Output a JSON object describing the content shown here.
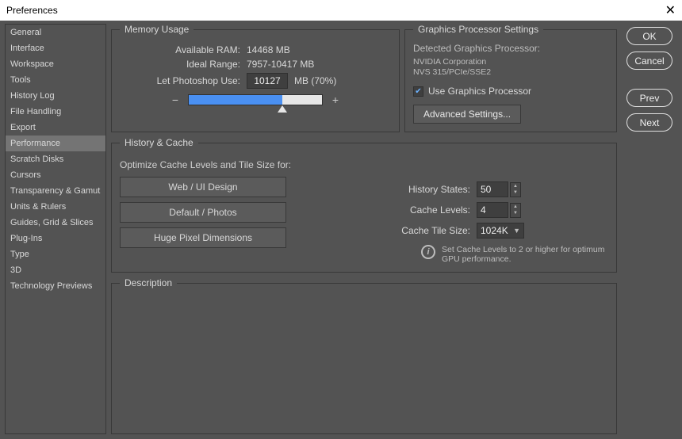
{
  "window": {
    "title": "Preferences"
  },
  "sidebar": {
    "items": [
      {
        "label": "General"
      },
      {
        "label": "Interface"
      },
      {
        "label": "Workspace"
      },
      {
        "label": "Tools"
      },
      {
        "label": "History Log"
      },
      {
        "label": "File Handling"
      },
      {
        "label": "Export"
      },
      {
        "label": "Performance"
      },
      {
        "label": "Scratch Disks"
      },
      {
        "label": "Cursors"
      },
      {
        "label": "Transparency & Gamut"
      },
      {
        "label": "Units & Rulers"
      },
      {
        "label": "Guides, Grid & Slices"
      },
      {
        "label": "Plug-Ins"
      },
      {
        "label": "Type"
      },
      {
        "label": "3D"
      },
      {
        "label": "Technology Previews"
      }
    ],
    "active_index": 7
  },
  "memory": {
    "legend": "Memory Usage",
    "available_label": "Available RAM:",
    "available_value": "14468 MB",
    "ideal_label": "Ideal Range:",
    "ideal_value": "7957-10417 MB",
    "use_label": "Let Photoshop Use:",
    "use_value": "10127",
    "use_suffix": "MB (70%)",
    "slider": {
      "fill_percent": 70,
      "track_bg": "#e6e6e6",
      "fill_color": "#4a90f2"
    }
  },
  "gpu": {
    "legend": "Graphics Processor Settings",
    "detected_label": "Detected Graphics Processor:",
    "vendor": "NVIDIA Corporation",
    "device": "NVS 315/PCIe/SSE2",
    "checkbox_label": "Use Graphics Processor",
    "checked": true,
    "advanced_button": "Advanced Settings..."
  },
  "history": {
    "legend": "History & Cache",
    "optimize_caption": "Optimize Cache Levels and Tile Size for:",
    "buttons": [
      "Web / UI Design",
      "Default / Photos",
      "Huge Pixel Dimensions"
    ],
    "states_label": "History States:",
    "states_value": "50",
    "levels_label": "Cache Levels:",
    "levels_value": "4",
    "tile_label": "Cache Tile Size:",
    "tile_value": "1024K",
    "hint": "Set Cache Levels to 2 or higher for optimum GPU performance."
  },
  "description": {
    "legend": "Description"
  },
  "buttons": {
    "ok": "OK",
    "cancel": "Cancel",
    "prev": "Prev",
    "next": "Next"
  },
  "colors": {
    "dialog_bg": "#535353",
    "border": "#383838",
    "text": "#d8d8d8",
    "input_bg": "#3f3f3f",
    "active_row": "#747474",
    "pill_border": "#e0e0e0"
  }
}
